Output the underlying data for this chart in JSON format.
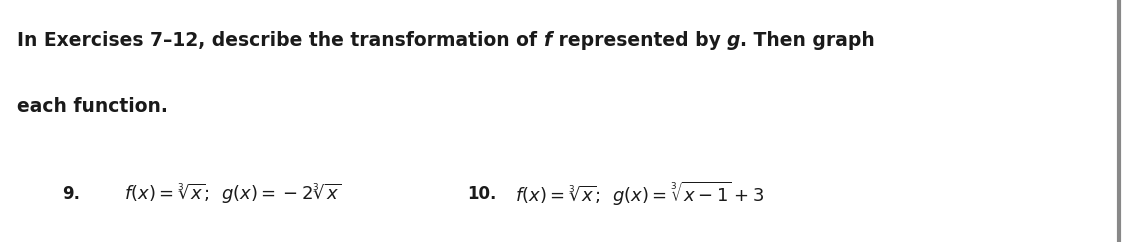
{
  "background_color": "#ffffff",
  "border_color": "#888888",
  "title_line1_parts": [
    [
      "In Exercises 7–12, describe the transformation of ",
      "normal"
    ],
    [
      "f",
      "italic"
    ],
    [
      " represented by ",
      "normal"
    ],
    [
      "g",
      "italic"
    ],
    [
      ". Then graph",
      "normal"
    ]
  ],
  "title_line2": "each function.",
  "item9_label": "9.",
  "item9_math": "$f(x) = \\sqrt[3]{x}$;  $g(x) = -2\\sqrt[3]{x}$",
  "item10_label": "10.",
  "item10_math": "$f(x) = \\sqrt[3]{x}$;  $g(x) = \\sqrt[3]{x-1} + 3$",
  "figwidth": 11.25,
  "figheight": 2.42,
  "dpi": 100
}
